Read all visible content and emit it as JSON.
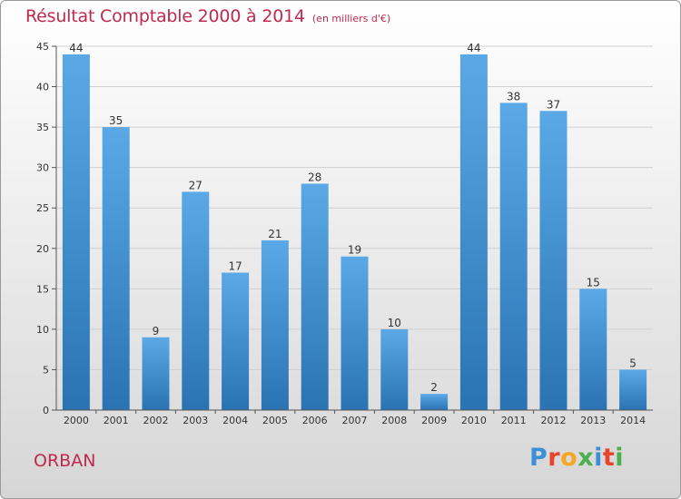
{
  "header": {
    "title": "Résultat Comptable 2000 à 2014",
    "subtitle": "(en milliers d'€)"
  },
  "footer": {
    "commune": "ORBAN",
    "logo_letters": [
      "P",
      "r",
      "o",
      "x",
      "i",
      "t",
      "i"
    ],
    "logo_colors": [
      "#3b8fd6",
      "#e8442b",
      "#f5a623",
      "#4caf50",
      "#3b8fd6",
      "#e8442b",
      "#4caf50"
    ]
  },
  "colors": {
    "accent": "#c0294e",
    "bar_top": "#5aa9e6",
    "bar_bottom": "#2a73b3",
    "grid": "#d0d0d0",
    "axis": "#555555"
  },
  "chart_data": {
    "type": "bar",
    "title": "Résultat Comptable 2000 à 2014",
    "subtitle": "(en milliers d'€)",
    "xlabel": "",
    "ylabel": "",
    "categories": [
      "2000",
      "2001",
      "2002",
      "2003",
      "2004",
      "2005",
      "2006",
      "2007",
      "2008",
      "2009",
      "2010",
      "2011",
      "2012",
      "2013",
      "2014"
    ],
    "values": [
      44,
      35,
      9,
      27,
      17,
      21,
      28,
      19,
      10,
      2,
      44,
      38,
      37,
      15,
      5
    ],
    "ylim": [
      0,
      45
    ],
    "yticks": [
      0,
      5,
      10,
      15,
      20,
      25,
      30,
      35,
      40,
      45
    ],
    "grid": "horizontal",
    "legend": "none"
  }
}
